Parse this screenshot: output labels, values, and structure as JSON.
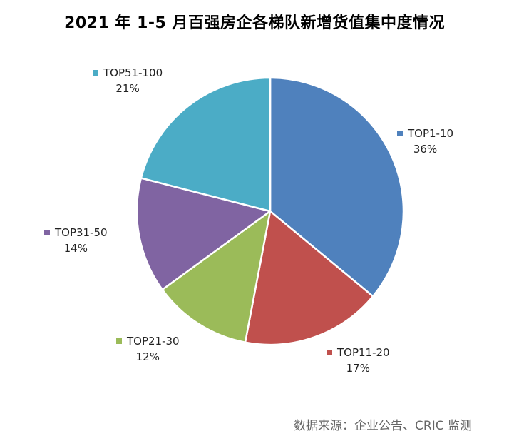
{
  "chart_data": {
    "type": "pie",
    "title": "2021 年 1-5 月百强房企各梯队新增货值集中度情况",
    "slices": [
      {
        "name": "TOP1-10",
        "value": 36,
        "label": "36%",
        "color": "#4f81bd"
      },
      {
        "name": "TOP11-20",
        "value": 17,
        "label": "17%",
        "color": "#c0504d"
      },
      {
        "name": "TOP21-30",
        "value": 12,
        "label": "12%",
        "color": "#9bbb59"
      },
      {
        "name": "TOP31-50",
        "value": 14,
        "label": "14%",
        "color": "#8064a2"
      },
      {
        "name": "TOP51-100",
        "value": 21,
        "label": "21%",
        "color": "#4bacc6"
      }
    ],
    "start_angle_deg": 0,
    "direction": "clockwise",
    "legend": "none"
  },
  "source": "数据来源：企业公告、CRIC 监测"
}
